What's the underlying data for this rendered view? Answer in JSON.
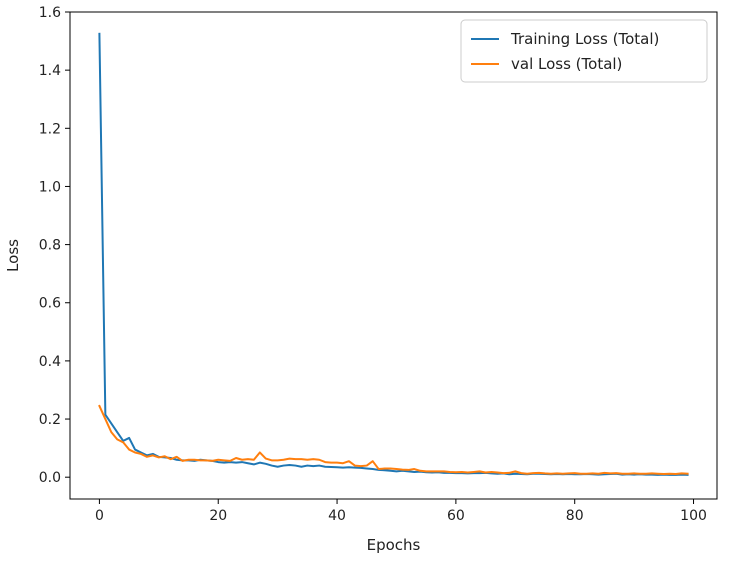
{
  "chart_data": {
    "type": "line",
    "title": "",
    "xlabel": "Epochs",
    "ylabel": "Loss",
    "xlim": [
      -4.95,
      103.95
    ],
    "ylim": [
      -0.075,
      1.6
    ],
    "xticks": [
      0,
      20,
      40,
      60,
      80,
      100
    ],
    "xtick_labels": [
      "0",
      "20",
      "40",
      "60",
      "80",
      "100"
    ],
    "yticks": [
      0.0,
      0.2,
      0.4,
      0.6,
      0.8,
      1.0,
      1.2,
      1.4,
      1.6
    ],
    "ytick_labels": [
      "0.0",
      "0.2",
      "0.4",
      "0.6",
      "0.8",
      "1.0",
      "1.2",
      "1.4",
      "1.6"
    ],
    "grid": false,
    "legend": "top-right",
    "series": [
      {
        "name": "Training Loss (Total)",
        "color": "#1f77b4",
        "x": [
          0,
          1,
          2,
          3,
          4,
          5,
          6,
          7,
          8,
          9,
          10,
          11,
          12,
          13,
          14,
          15,
          16,
          17,
          18,
          19,
          20,
          21,
          22,
          23,
          24,
          25,
          26,
          27,
          28,
          29,
          30,
          31,
          32,
          33,
          34,
          35,
          36,
          37,
          38,
          39,
          40,
          41,
          42,
          43,
          44,
          45,
          46,
          47,
          48,
          49,
          50,
          51,
          52,
          53,
          54,
          55,
          56,
          57,
          58,
          59,
          60,
          61,
          62,
          63,
          64,
          65,
          66,
          67,
          68,
          69,
          70,
          71,
          72,
          73,
          74,
          75,
          76,
          77,
          78,
          79,
          80,
          81,
          82,
          83,
          84,
          85,
          86,
          87,
          88,
          89,
          90,
          91,
          92,
          93,
          94,
          95,
          96,
          97,
          98,
          99
        ],
        "values": [
          1.525,
          0.215,
          0.185,
          0.155,
          0.125,
          0.135,
          0.095,
          0.085,
          0.075,
          0.08,
          0.07,
          0.068,
          0.066,
          0.06,
          0.058,
          0.058,
          0.056,
          0.06,
          0.058,
          0.056,
          0.052,
          0.05,
          0.052,
          0.05,
          0.052,
          0.048,
          0.044,
          0.05,
          0.046,
          0.04,
          0.036,
          0.04,
          0.042,
          0.04,
          0.036,
          0.04,
          0.038,
          0.04,
          0.036,
          0.035,
          0.034,
          0.033,
          0.034,
          0.033,
          0.032,
          0.03,
          0.028,
          0.025,
          0.024,
          0.022,
          0.02,
          0.022,
          0.02,
          0.018,
          0.019,
          0.017,
          0.016,
          0.017,
          0.015,
          0.015,
          0.014,
          0.014,
          0.013,
          0.014,
          0.014,
          0.015,
          0.013,
          0.012,
          0.013,
          0.01,
          0.012,
          0.011,
          0.01,
          0.012,
          0.012,
          0.011,
          0.01,
          0.011,
          0.01,
          0.011,
          0.01,
          0.01,
          0.011,
          0.01,
          0.009,
          0.01,
          0.011,
          0.012,
          0.009,
          0.01,
          0.009,
          0.01,
          0.009,
          0.009,
          0.008,
          0.009,
          0.008,
          0.008,
          0.009,
          0.008
        ]
      },
      {
        "name": "val Loss (Total)",
        "color": "#ff7f0e",
        "x": [
          0,
          1,
          2,
          3,
          4,
          5,
          6,
          7,
          8,
          9,
          10,
          11,
          12,
          13,
          14,
          15,
          16,
          17,
          18,
          19,
          20,
          21,
          22,
          23,
          24,
          25,
          26,
          27,
          28,
          29,
          30,
          31,
          32,
          33,
          34,
          35,
          36,
          37,
          38,
          39,
          40,
          41,
          42,
          43,
          44,
          45,
          46,
          47,
          48,
          49,
          50,
          51,
          52,
          53,
          54,
          55,
          56,
          57,
          58,
          59,
          60,
          61,
          62,
          63,
          64,
          65,
          66,
          67,
          68,
          69,
          70,
          71,
          72,
          73,
          74,
          75,
          76,
          77,
          78,
          79,
          80,
          81,
          82,
          83,
          84,
          85,
          86,
          87,
          88,
          89,
          90,
          91,
          92,
          93,
          94,
          95,
          96,
          97,
          98,
          99
        ],
        "values": [
          0.245,
          0.2,
          0.155,
          0.13,
          0.12,
          0.095,
          0.085,
          0.08,
          0.07,
          0.075,
          0.068,
          0.072,
          0.062,
          0.07,
          0.056,
          0.06,
          0.06,
          0.058,
          0.058,
          0.056,
          0.06,
          0.058,
          0.056,
          0.066,
          0.06,
          0.062,
          0.06,
          0.085,
          0.064,
          0.058,
          0.058,
          0.06,
          0.064,
          0.062,
          0.062,
          0.06,
          0.062,
          0.06,
          0.052,
          0.05,
          0.05,
          0.048,
          0.055,
          0.04,
          0.038,
          0.04,
          0.055,
          0.028,
          0.03,
          0.03,
          0.028,
          0.026,
          0.025,
          0.028,
          0.022,
          0.02,
          0.02,
          0.02,
          0.02,
          0.018,
          0.017,
          0.018,
          0.016,
          0.018,
          0.02,
          0.016,
          0.018,
          0.016,
          0.014,
          0.015,
          0.02,
          0.014,
          0.012,
          0.014,
          0.015,
          0.013,
          0.012,
          0.013,
          0.012,
          0.013,
          0.014,
          0.012,
          0.012,
          0.013,
          0.012,
          0.015,
          0.013,
          0.014,
          0.012,
          0.012,
          0.013,
          0.012,
          0.012,
          0.013,
          0.012,
          0.011,
          0.012,
          0.011,
          0.013,
          0.012
        ]
      }
    ]
  }
}
